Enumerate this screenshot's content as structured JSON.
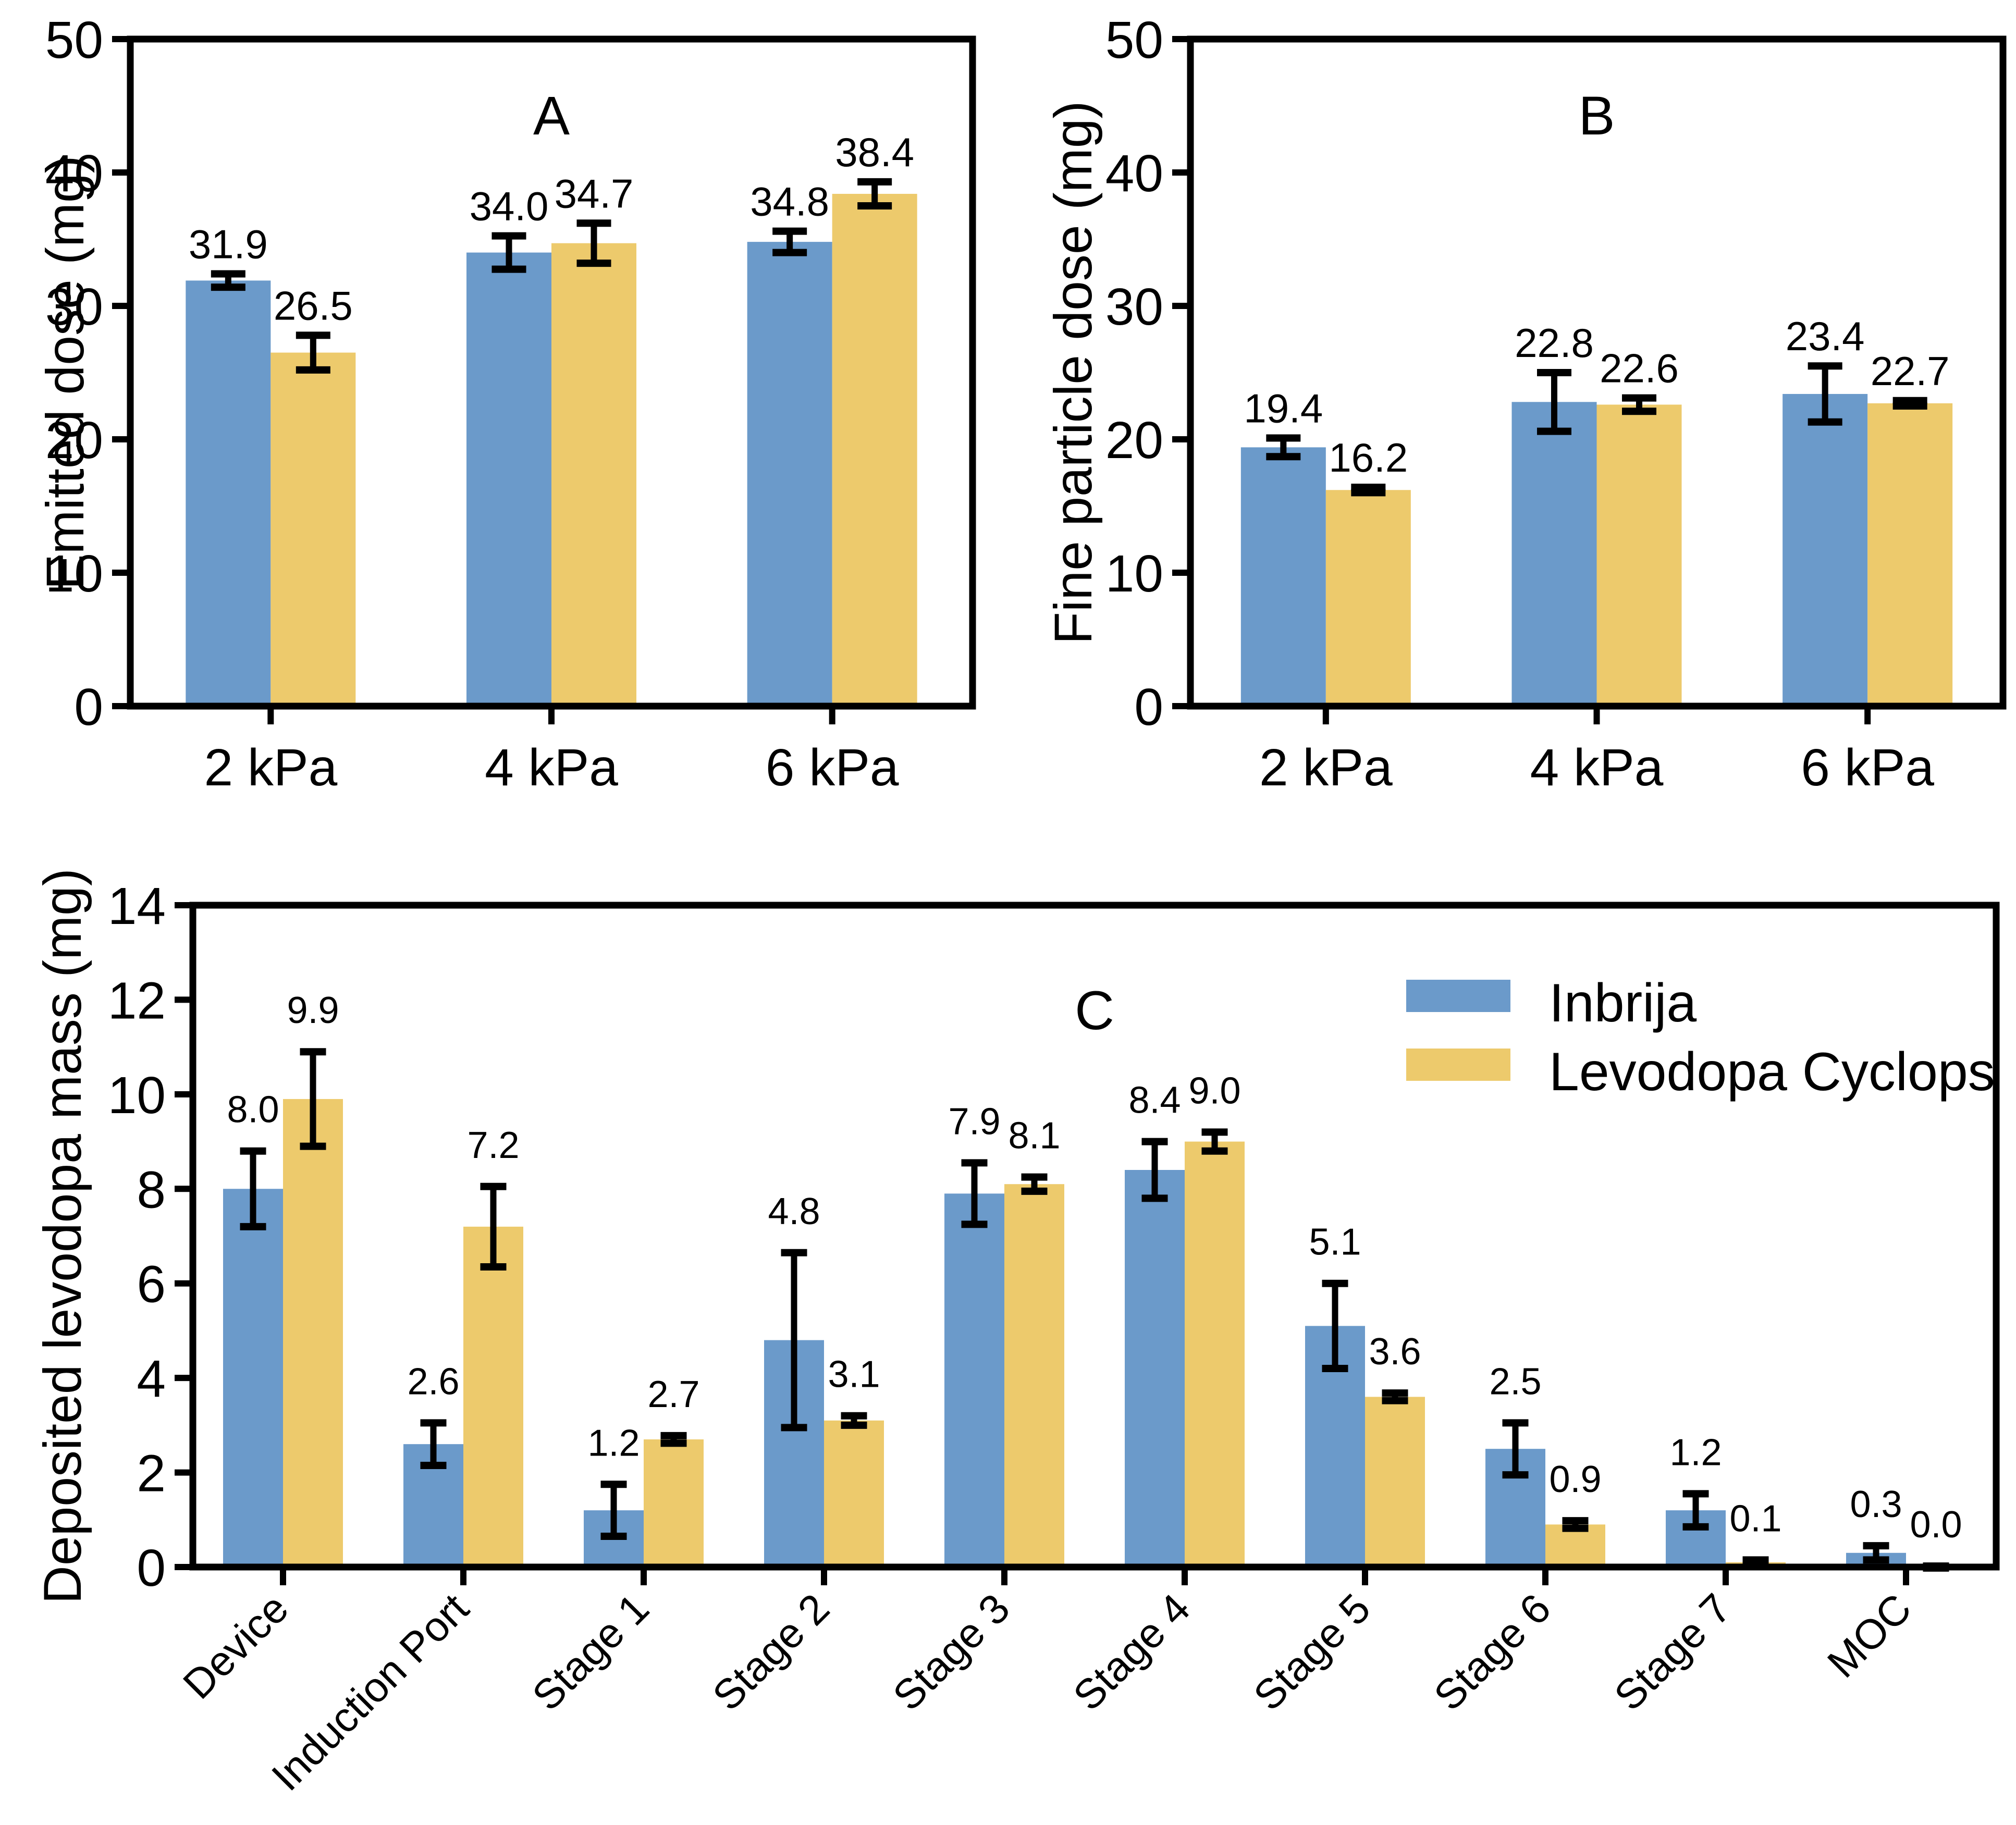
{
  "figure": {
    "background": "#ffffff",
    "text_color": "#000000",
    "axis_color": "#000000",
    "legend": {
      "entries": [
        {
          "label": "Inbrija",
          "color": "#6b9aca"
        },
        {
          "label": "Levodopa Cyclops",
          "color": "#edca6c"
        }
      ]
    }
  },
  "chart_data": [
    {
      "id": "A",
      "type": "bar",
      "panel_label": "A",
      "title": "",
      "xlabel": "",
      "ylabel": "Emitted dose (mg)",
      "ylim": [
        0,
        50
      ],
      "yticks": [
        0,
        10,
        20,
        30,
        40,
        50
      ],
      "grid": false,
      "legend_position": "none",
      "categories": [
        "2 kPa",
        "4 kPa",
        "6 kPa"
      ],
      "series": [
        {
          "name": "Inbrija",
          "color": "#6b9aca",
          "values": [
            31.9,
            34.0,
            34.8
          ],
          "errors": [
            0.5,
            1.25,
            0.8
          ]
        },
        {
          "name": "Levodopa Cyclops",
          "color": "#edca6c",
          "values": [
            26.5,
            34.7,
            38.4
          ],
          "errors": [
            1.3,
            1.5,
            0.9
          ]
        }
      ]
    },
    {
      "id": "B",
      "type": "bar",
      "panel_label": "B",
      "title": "",
      "xlabel": "",
      "ylabel": "Fine particle dose (mg)",
      "ylim": [
        0,
        50
      ],
      "yticks": [
        0,
        10,
        20,
        30,
        40,
        50
      ],
      "grid": false,
      "legend_position": "none",
      "categories": [
        "2 kPa",
        "4 kPa",
        "6 kPa"
      ],
      "series": [
        {
          "name": "Inbrija",
          "color": "#6b9aca",
          "values": [
            19.4,
            22.8,
            23.4
          ],
          "errors": [
            0.7,
            2.2,
            2.1
          ]
        },
        {
          "name": "Levodopa Cyclops",
          "color": "#edca6c",
          "values": [
            16.2,
            22.6,
            22.7
          ],
          "errors": [
            0.2,
            0.5,
            0.2
          ]
        }
      ]
    },
    {
      "id": "C",
      "type": "bar",
      "panel_label": "C",
      "title": "",
      "xlabel": "",
      "ylabel": "Deposited levodopa mass (mg)",
      "ylim": [
        0,
        14
      ],
      "yticks": [
        0,
        2,
        4,
        6,
        8,
        10,
        12,
        14
      ],
      "grid": false,
      "xtick_rotation": 45,
      "legend_position": "upper-right-inside",
      "categories": [
        "Device",
        "Induction Port",
        "Stage 1",
        "Stage 2",
        "Stage 3",
        "Stage 4",
        "Stage 5",
        "Stage 6",
        "Stage 7",
        "MOC"
      ],
      "series": [
        {
          "name": "Inbrija",
          "color": "#6b9aca",
          "values": [
            8.0,
            2.6,
            1.2,
            4.8,
            7.9,
            8.4,
            5.1,
            2.5,
            1.2,
            0.3
          ],
          "errors": [
            0.8,
            0.45,
            0.55,
            1.85,
            0.65,
            0.6,
            0.9,
            0.55,
            0.35,
            0.15
          ]
        },
        {
          "name": "Levodopa Cyclops",
          "color": "#edca6c",
          "values": [
            9.9,
            7.2,
            2.7,
            3.1,
            8.1,
            9.0,
            3.6,
            0.9,
            0.1,
            0.0
          ],
          "errors": [
            1.0,
            0.85,
            0.08,
            0.1,
            0.15,
            0.2,
            0.08,
            0.08,
            0.05,
            0.02
          ]
        }
      ]
    }
  ]
}
